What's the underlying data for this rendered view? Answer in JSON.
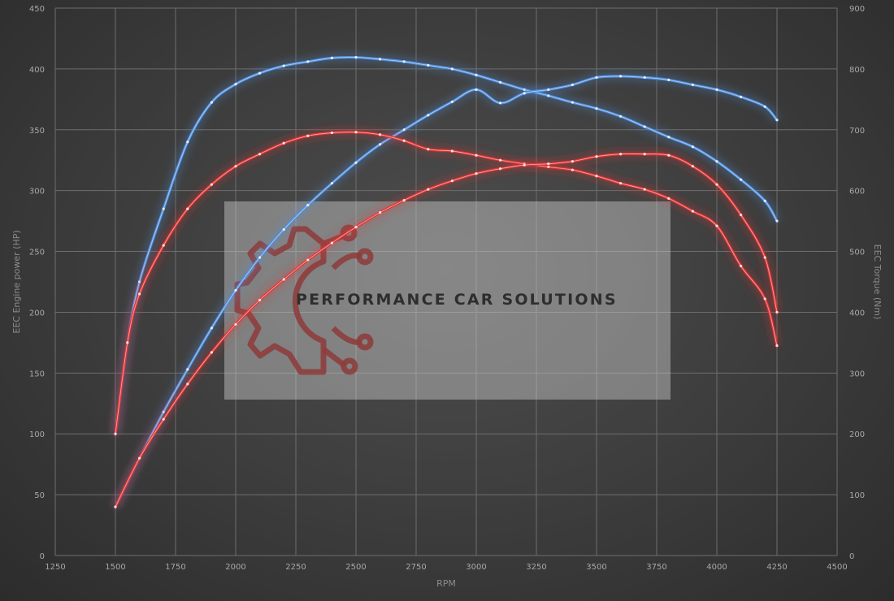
{
  "watermark": {
    "text": "PERFORMANCE CAR SOLUTIONS"
  },
  "chart_data": {
    "type": "line",
    "xlabel": "RPM",
    "ylabel_left": "EEC Engine power (HP)",
    "ylabel_right": "EEC Torque (Nm)",
    "xlim": [
      1250,
      4500
    ],
    "x_ticks": [
      1250,
      1500,
      1750,
      2000,
      2250,
      2500,
      2750,
      3000,
      3250,
      3500,
      3750,
      4000,
      4250,
      4500
    ],
    "ylim_left": [
      0,
      450
    ],
    "y_ticks_left": [
      0,
      50,
      100,
      150,
      200,
      250,
      300,
      350,
      400,
      450
    ],
    "ylim_right": [
      0,
      900
    ],
    "y_ticks_right": [
      0,
      100,
      200,
      300,
      400,
      500,
      600,
      700,
      800,
      900
    ],
    "grid": true,
    "legend": "none",
    "colors": {
      "tuned": "#4f8fe0",
      "stock": "#e23232"
    },
    "series": [
      {
        "axis": "right",
        "color": "tuned",
        "points": [
          [
            1500,
            200
          ],
          [
            1550,
            350
          ],
          [
            1600,
            450
          ],
          [
            1700,
            570
          ],
          [
            1800,
            680
          ],
          [
            1900,
            745
          ],
          [
            2000,
            775
          ],
          [
            2100,
            793
          ],
          [
            2200,
            805
          ],
          [
            2300,
            812
          ],
          [
            2400,
            818
          ],
          [
            2500,
            819
          ],
          [
            2600,
            816
          ],
          [
            2700,
            812
          ],
          [
            2800,
            806
          ],
          [
            2900,
            800
          ],
          [
            3000,
            790
          ],
          [
            3100,
            778
          ],
          [
            3200,
            766
          ],
          [
            3300,
            756
          ],
          [
            3400,
            745
          ],
          [
            3500,
            735
          ],
          [
            3600,
            722
          ],
          [
            3700,
            705
          ],
          [
            3800,
            688
          ],
          [
            3900,
            672
          ],
          [
            4000,
            648
          ],
          [
            4100,
            618
          ],
          [
            4200,
            583
          ],
          [
            4250,
            550
          ]
        ]
      },
      {
        "axis": "left",
        "color": "tuned",
        "points": [
          [
            1500,
            40
          ],
          [
            1600,
            80
          ],
          [
            1700,
            118
          ],
          [
            1800,
            153
          ],
          [
            1900,
            187
          ],
          [
            2000,
            218
          ],
          [
            2100,
            245
          ],
          [
            2200,
            268
          ],
          [
            2300,
            288
          ],
          [
            2400,
            306
          ],
          [
            2500,
            323
          ],
          [
            2600,
            338
          ],
          [
            2700,
            350
          ],
          [
            2800,
            362
          ],
          [
            2900,
            373
          ],
          [
            3000,
            383
          ],
          [
            3100,
            372
          ],
          [
            3200,
            380
          ],
          [
            3300,
            383
          ],
          [
            3400,
            387
          ],
          [
            3500,
            393
          ],
          [
            3600,
            394
          ],
          [
            3700,
            393
          ],
          [
            3800,
            391
          ],
          [
            3900,
            387
          ],
          [
            4000,
            383
          ],
          [
            4100,
            377
          ],
          [
            4200,
            369
          ],
          [
            4250,
            358
          ]
        ]
      },
      {
        "axis": "right",
        "color": "stock",
        "points": [
          [
            1500,
            200
          ],
          [
            1550,
            350
          ],
          [
            1600,
            430
          ],
          [
            1700,
            510
          ],
          [
            1800,
            570
          ],
          [
            1900,
            610
          ],
          [
            2000,
            640
          ],
          [
            2100,
            660
          ],
          [
            2200,
            678
          ],
          [
            2300,
            690
          ],
          [
            2400,
            695
          ],
          [
            2500,
            696
          ],
          [
            2600,
            692
          ],
          [
            2700,
            682
          ],
          [
            2800,
            668
          ],
          [
            2900,
            665
          ],
          [
            3000,
            658
          ],
          [
            3100,
            650
          ],
          [
            3200,
            644
          ],
          [
            3300,
            639
          ],
          [
            3400,
            634
          ],
          [
            3500,
            624
          ],
          [
            3600,
            612
          ],
          [
            3700,
            602
          ],
          [
            3800,
            587
          ],
          [
            3900,
            566
          ],
          [
            4000,
            542
          ],
          [
            4100,
            476
          ],
          [
            4200,
            422
          ],
          [
            4250,
            345
          ]
        ]
      },
      {
        "axis": "left",
        "color": "stock",
        "points": [
          [
            1500,
            40
          ],
          [
            1600,
            80
          ],
          [
            1700,
            112
          ],
          [
            1800,
            141
          ],
          [
            1900,
            167
          ],
          [
            2000,
            190
          ],
          [
            2100,
            210
          ],
          [
            2200,
            227
          ],
          [
            2300,
            243
          ],
          [
            2400,
            257
          ],
          [
            2500,
            270
          ],
          [
            2600,
            282
          ],
          [
            2700,
            292
          ],
          [
            2800,
            301
          ],
          [
            2900,
            308
          ],
          [
            3000,
            314
          ],
          [
            3100,
            318
          ],
          [
            3200,
            321
          ],
          [
            3300,
            322
          ],
          [
            3400,
            324
          ],
          [
            3500,
            328
          ],
          [
            3600,
            330
          ],
          [
            3700,
            330
          ],
          [
            3800,
            329
          ],
          [
            3900,
            320
          ],
          [
            4000,
            305
          ],
          [
            4100,
            280
          ],
          [
            4200,
            245
          ],
          [
            4250,
            200
          ]
        ]
      }
    ]
  }
}
